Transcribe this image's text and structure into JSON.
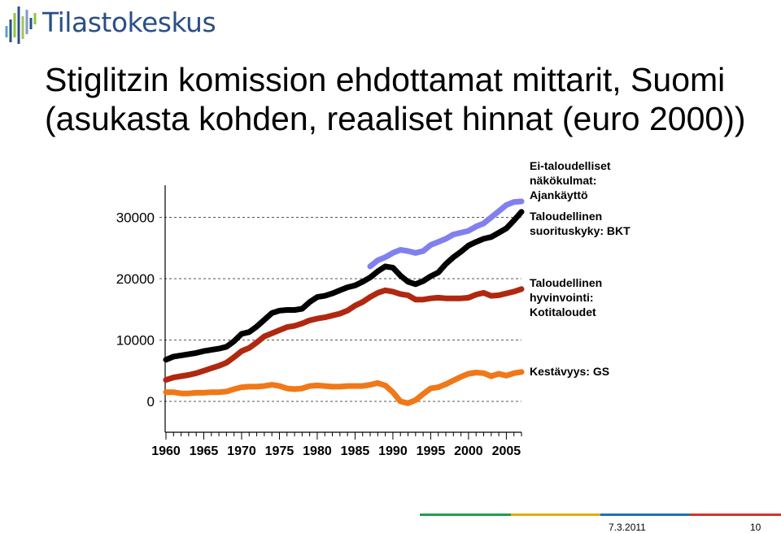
{
  "brand": {
    "name": "Tilastokeskus",
    "colors": [
      "#2a4f86",
      "#7b9ec7",
      "#a9c05d",
      "#8cc63f",
      "#5aa0d8"
    ]
  },
  "title": {
    "line1": "Stiglitzin komission ehdottamat mittarit, Suomi",
    "line2": "(asukasta kohden, reaaliset hinnat (euro 2000))"
  },
  "footer": {
    "date": "7.3.2011",
    "page": "10",
    "bar_colors": [
      "#1e9e4a",
      "#e8a90e",
      "#1f70b8",
      "#d9312b"
    ]
  },
  "chart_data": {
    "type": "line",
    "title": "",
    "xlabel": "",
    "ylabel": "",
    "xlim": [
      1960,
      2007
    ],
    "ylim": [
      -3000,
      35000
    ],
    "x_ticks": [
      "1960",
      "1965",
      "1970",
      "1975",
      "1980",
      "1985",
      "1990",
      "1995",
      "2000",
      "2005"
    ],
    "y_ticks": [
      "0",
      "10000",
      "20000",
      "30000"
    ],
    "grid": "horizontal dashed",
    "legend_placement": "right of lines",
    "series": [
      {
        "name": "Ei-taloudelliset näkökulmat: Ajankäyttö",
        "legend_lines": [
          "Ei-taloudelliset",
          "näkökulmat:",
          "Ajankäyttö"
        ],
        "color": "#8080f0",
        "x": [
          1987,
          1988,
          1989,
          1990,
          1991,
          1992,
          1993,
          1994,
          1995,
          1996,
          1997,
          1998,
          1999,
          2000,
          2001,
          2002,
          2003,
          2004,
          2005,
          2006,
          2007
        ],
        "y": [
          22000,
          23000,
          23500,
          24200,
          24700,
          24500,
          24200,
          24500,
          25500,
          26000,
          26500,
          27200,
          27500,
          27800,
          28500,
          29000,
          30000,
          31000,
          32000,
          32500,
          32600
        ]
      },
      {
        "name": "Taloudellinen suorituskyky: BKT",
        "legend_lines": [
          "Taloudellinen",
          "suorituskyky: BKT"
        ],
        "color": "#000000",
        "x": [
          1960,
          1961,
          1962,
          1963,
          1964,
          1965,
          1966,
          1967,
          1968,
          1969,
          1970,
          1971,
          1972,
          1973,
          1974,
          1975,
          1976,
          1977,
          1978,
          1979,
          1980,
          1981,
          1982,
          1983,
          1984,
          1985,
          1986,
          1987,
          1988,
          1989,
          1990,
          1991,
          1992,
          1993,
          1994,
          1995,
          1996,
          1997,
          1998,
          1999,
          2000,
          2001,
          2002,
          2003,
          2004,
          2005,
          2006,
          2007
        ],
        "y": [
          6800,
          7300,
          7500,
          7700,
          7900,
          8200,
          8400,
          8600,
          8900,
          9800,
          11000,
          11300,
          12200,
          13300,
          14400,
          14800,
          14900,
          14900,
          15100,
          16200,
          17000,
          17200,
          17600,
          18100,
          18600,
          18900,
          19500,
          20200,
          21200,
          22000,
          21800,
          20500,
          19500,
          19100,
          19600,
          20400,
          21000,
          22400,
          23500,
          24400,
          25400,
          26000,
          26500,
          26800,
          27500,
          28200,
          29500,
          30900
        ]
      },
      {
        "name": "Taloudellinen hyvinvointi: Kotitaloudet",
        "legend_lines": [
          "Taloudellinen",
          "hyvinvointi:",
          "Kotitaloudet"
        ],
        "color": "#b02810",
        "x": [
          1960,
          1961,
          1962,
          1963,
          1964,
          1965,
          1966,
          1967,
          1968,
          1969,
          1970,
          1971,
          1972,
          1973,
          1974,
          1975,
          1976,
          1977,
          1978,
          1979,
          1980,
          1981,
          1982,
          1983,
          1984,
          1985,
          1986,
          1987,
          1988,
          1989,
          1990,
          1991,
          1992,
          1993,
          1994,
          1995,
          1996,
          1997,
          1998,
          1999,
          2000,
          2001,
          2002,
          2003,
          2004,
          2005,
          2006,
          2007
        ],
        "y": [
          3500,
          3900,
          4100,
          4300,
          4600,
          5000,
          5400,
          5800,
          6300,
          7200,
          8200,
          8700,
          9600,
          10600,
          11100,
          11600,
          12100,
          12300,
          12700,
          13200,
          13500,
          13700,
          14000,
          14300,
          14800,
          15600,
          16200,
          17000,
          17700,
          18100,
          17900,
          17500,
          17300,
          16600,
          16600,
          16800,
          16900,
          16800,
          16800,
          16800,
          16900,
          17400,
          17700,
          17200,
          17300,
          17600,
          17900,
          18300
        ]
      },
      {
        "name": "Kestävyys: GS",
        "legend_lines": [
          "Kestävyys: GS"
        ],
        "color": "#f07818",
        "x": [
          1960,
          1961,
          1962,
          1963,
          1964,
          1965,
          1966,
          1967,
          1968,
          1969,
          1970,
          1971,
          1972,
          1973,
          1974,
          1975,
          1976,
          1977,
          1978,
          1979,
          1980,
          1981,
          1982,
          1983,
          1984,
          1985,
          1986,
          1987,
          1988,
          1989,
          1990,
          1991,
          1992,
          1993,
          1994,
          1995,
          1996,
          1997,
          1998,
          1999,
          2000,
          2001,
          2002,
          2003,
          2004,
          2005,
          2006,
          2007
        ],
        "y": [
          1500,
          1500,
          1300,
          1300,
          1400,
          1400,
          1500,
          1500,
          1600,
          2000,
          2300,
          2400,
          2400,
          2500,
          2700,
          2500,
          2100,
          2000,
          2100,
          2500,
          2600,
          2500,
          2400,
          2400,
          2500,
          2500,
          2500,
          2700,
          3000,
          2600,
          1500,
          0,
          -300,
          200,
          1200,
          2100,
          2300,
          2800,
          3400,
          4000,
          4500,
          4700,
          4600,
          4100,
          4500,
          4200,
          4600,
          4800
        ]
      }
    ]
  }
}
